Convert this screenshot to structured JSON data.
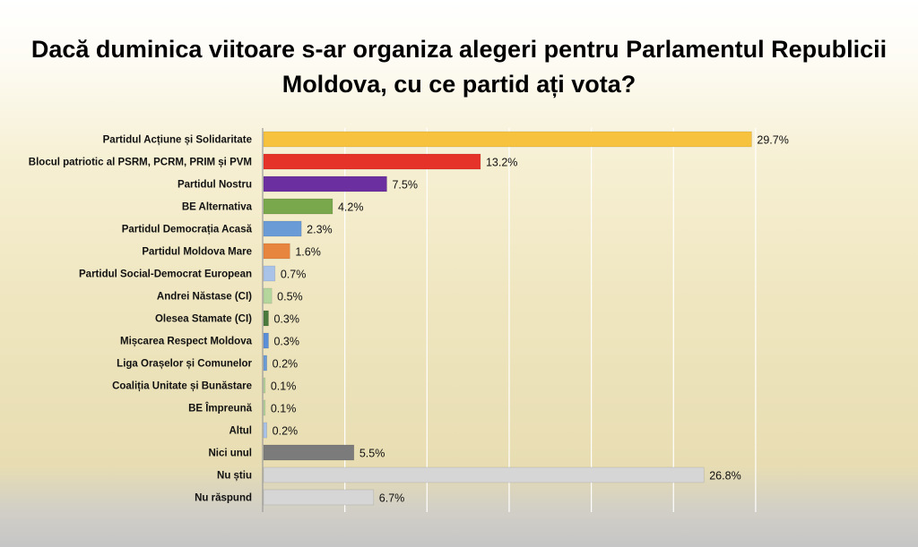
{
  "chart_data": {
    "type": "bar",
    "orientation": "horizontal",
    "title": "Dacă duminica viitoare s-ar organiza alegeri pentru Parlamentul Republicii Moldova, cu ce partid ați vota?",
    "value_suffix": "%",
    "xlim": [
      0,
      32
    ],
    "grid": true,
    "categories": [
      "Partidul Acțiune și Solidaritate",
      "Blocul patriotic al PSRM, PCRM, PRIM și PVM",
      "Partidul Nostru",
      "BE Alternativa",
      "Partidul Democrația Acasă",
      "Partidul Moldova Mare",
      "Partidul Social-Democrat European",
      "Andrei Năstase (CI)",
      "Olesea Stamate (CI)",
      "Mișcarea Respect Moldova",
      "Liga Orașelor și Comunelor",
      "Coaliția Unitate și Bunăstare",
      "BE Împreună",
      "Altul",
      "Nici unul",
      "Nu știu",
      "Nu răspund"
    ],
    "values": [
      29.7,
      13.2,
      7.5,
      4.2,
      2.3,
      1.6,
      0.7,
      0.5,
      0.3,
      0.3,
      0.2,
      0.1,
      0.1,
      0.2,
      5.5,
      26.8,
      6.7
    ],
    "value_labels": [
      "29.7%",
      "13.2%",
      "7.5%",
      "4.2%",
      "2.3%",
      "1.6%",
      "0.7%",
      "0.5%",
      "0.3%",
      "0.3%",
      "0.2%",
      "0.1%",
      "0.1%",
      "0.2%",
      "5.5%",
      "26.8%",
      "6.7%"
    ],
    "colors": [
      "#f7c23e",
      "#e63329",
      "#6b2fa0",
      "#79a84c",
      "#6b9bd6",
      "#e7843d",
      "#a9c3e8",
      "#b5d69c",
      "#4a7a3c",
      "#5b8fd8",
      "#6b9bd6",
      "#b5d69c",
      "#b5d69c",
      "#a9c3e8",
      "#7b7b7b",
      "#d6d6d6",
      "#d6d6d6"
    ]
  }
}
